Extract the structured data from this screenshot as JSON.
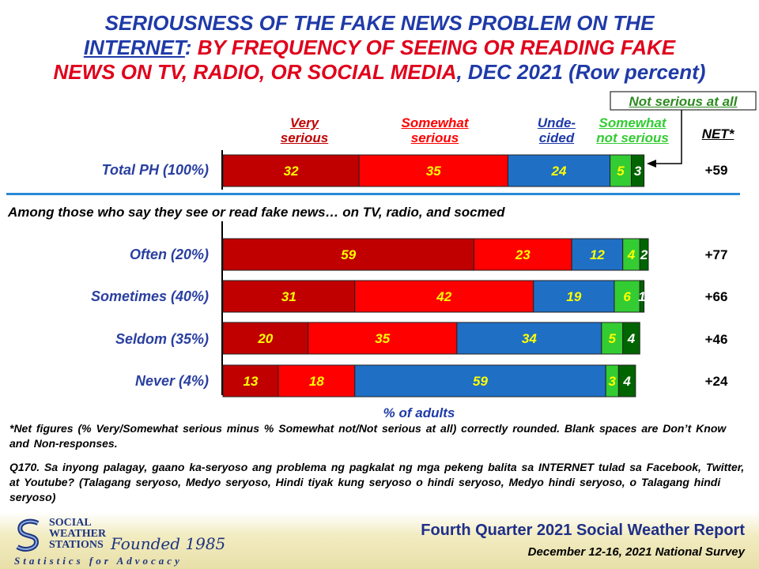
{
  "title": {
    "part1": "SERIOUSNESS OF THE FAKE NEWS PROBLEM ON THE",
    "part2": "INTERNET",
    "part3": ":",
    "part4": " BY FREQUENCY OF SEEING OR READING FAKE",
    "part5": "NEWS ON TV, RADIO, OR SOCIAL MEDIA",
    "part6": ", DEC 2021 (Row percent)"
  },
  "headers": {
    "very_serious": [
      "Very",
      "serious"
    ],
    "somewhat_serious": [
      "Somewhat",
      "serious"
    ],
    "undecided": [
      "Unde-",
      "cided"
    ],
    "somewhat_not_serious": [
      "Somewhat",
      "not serious"
    ],
    "not_serious_at_all": "Not serious at all",
    "net": "NET*"
  },
  "subhead": "Among those who say they see or read fake news… on TV, radio, and socmed",
  "colors": {
    "very_serious": "#c00000",
    "somewhat_serious": "#ff0000",
    "undecided": "#1f6fc5",
    "somewhat_not_serious": "#33cc33",
    "not_serious_at_all": "#006400",
    "title_blue": "#1f3aa8",
    "title_red": "#e0001b"
  },
  "chart_data": {
    "type": "bar",
    "orientation": "horizontal",
    "stacked": true,
    "categories": [
      "Total PH (100%)",
      "Often (20%)",
      "Sometimes (40%)",
      "Seldom (35%)",
      "Never (4%)"
    ],
    "series": [
      {
        "name": "Very serious",
        "values": [
          32,
          59,
          31,
          20,
          13
        ]
      },
      {
        "name": "Somewhat serious",
        "values": [
          35,
          23,
          42,
          35,
          18
        ]
      },
      {
        "name": "Undecided",
        "values": [
          24,
          12,
          19,
          34,
          59
        ]
      },
      {
        "name": "Somewhat not serious",
        "values": [
          5,
          4,
          6,
          5,
          3
        ]
      },
      {
        "name": "Not serious at all",
        "values": [
          3,
          2,
          1,
          4,
          4
        ]
      }
    ],
    "net": [
      "+59",
      "+77",
      "+66",
      "+46",
      "+24"
    ],
    "xlabel": "% of adults",
    "xlim": [
      0,
      100
    ],
    "legend": "top"
  },
  "notes": {
    "net_note": "*Net figures (% Very/Somewhat serious minus % Somewhat not/Not serious at all) correctly rounded. Blank spaces are Don’t Know and Non-responses.",
    "question": "Q170. Sa inyong palagay, gaano ka-seryoso ang problema ng pagkalat ng mga pekeng balita sa INTERNET tulad sa Facebook, Twitter, at Youtube? (Talagang seryoso, Medyo seryoso, Hindi tiyak kung seryoso o hindi seryoso, Medyo hindi seryoso, o Talagang hindi seryoso)"
  },
  "footer": {
    "org_line1": "SOCIAL",
    "org_line2": "WEATHER",
    "org_line3": "STATIONS",
    "founded": "Founded 1985",
    "tagline": "Statistics for Advocacy",
    "report": "Fourth Quarter 2021 Social Weather Report",
    "survey": "December 12-16, 2021 National Survey"
  }
}
